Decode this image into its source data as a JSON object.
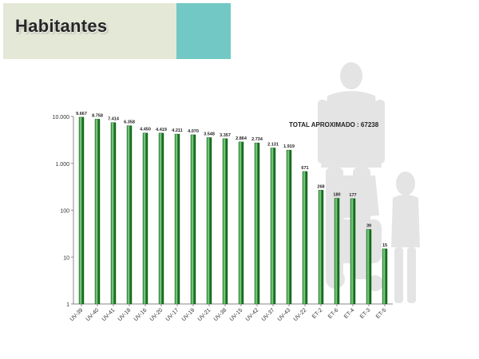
{
  "slide": {
    "title": "Habitantes"
  },
  "colors": {
    "title_band": "#e4e8d6",
    "title_accent": "#72c8c4",
    "bar_fill": "#1e8a2a",
    "bar_highlight": "#9ad79a"
  },
  "chart_data": {
    "type": "bar",
    "y_scale": "log",
    "ylim": [
      1,
      10000
    ],
    "y_ticks": [
      1,
      10,
      100,
      1000,
      10000
    ],
    "y_tick_labels": [
      "1",
      "10",
      "100",
      "1.000",
      "10.000"
    ],
    "categories": [
      "UV-39",
      "UV-40",
      "UV-41",
      "UV-18",
      "UV-16",
      "UV-20",
      "UV-17",
      "UV-19",
      "UV-21",
      "UV-38",
      "UV-15",
      "UV-42",
      "UV-37",
      "UV-43",
      "UV-22",
      "ET-2",
      "ET-6",
      "ET-4",
      "ET-3",
      "ET-5"
    ],
    "values": [
      9667,
      8758,
      7414,
      6358,
      4450,
      4419,
      4211,
      4070,
      3548,
      3357,
      2864,
      2734,
      2131,
      1919,
      671,
      268,
      180,
      177,
      39,
      15
    ],
    "value_labels": [
      "9.667",
      "8.758",
      "7.414",
      "6.358",
      "4.450",
      "4.419",
      "4.211",
      "4.070",
      "3.548",
      "3.357",
      "2.864",
      "2.734",
      "2.131",
      "1.919",
      "671",
      "268",
      "180",
      "177",
      "39",
      "15"
    ],
    "annotation": "TOTAL APROXIMADO : 67238",
    "legend": "none",
    "grid": false
  }
}
